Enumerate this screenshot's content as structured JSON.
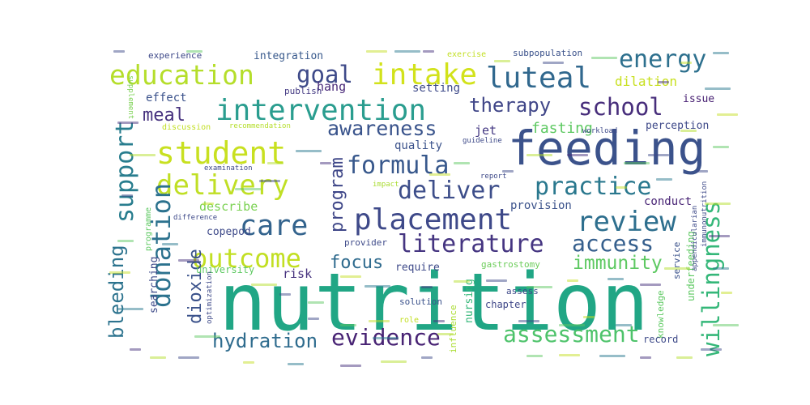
{
  "words": [
    {
      "text": "nutrition",
      "color": "#21a685"
    },
    {
      "text": "feeding",
      "color": "#3b528b"
    },
    {
      "text": "intervention",
      "color": "#2a9d8f"
    },
    {
      "text": "student",
      "color": "#c8e020"
    },
    {
      "text": "education",
      "color": "#b5de2b"
    },
    {
      "text": "intake",
      "color": "#d2e21b"
    },
    {
      "text": "luteal",
      "color": "#31688e"
    },
    {
      "text": "delivery",
      "color": "#c0df25"
    },
    {
      "text": "placement",
      "color": "#3e4989"
    },
    {
      "text": "donation",
      "color": "#2c728e"
    },
    {
      "text": "formula",
      "color": "#38588c"
    },
    {
      "text": "care",
      "color": "#33638d"
    },
    {
      "text": "review",
      "color": "#2e6f8e"
    },
    {
      "text": "school",
      "color": "#472d7b"
    },
    {
      "text": "energy",
      "color": "#2d708e"
    },
    {
      "text": "literature",
      "color": "#453581"
    },
    {
      "text": "outcome",
      "color": "#c2df23"
    },
    {
      "text": "support",
      "color": "#287d8e"
    },
    {
      "text": "practice",
      "color": "#2a788e"
    },
    {
      "text": "deliver",
      "color": "#3d4e8a"
    },
    {
      "text": "assessment",
      "color": "#4ec36b"
    },
    {
      "text": "willingness",
      "color": "#35b779"
    },
    {
      "text": "access",
      "color": "#355f8d"
    },
    {
      "text": "therapy",
      "color": "#404688"
    },
    {
      "text": "evidence",
      "color": "#482374"
    },
    {
      "text": "hydration",
      "color": "#2f6c8e"
    },
    {
      "text": "awareness",
      "color": "#3a548c"
    },
    {
      "text": "goal",
      "color": "#3e4a89"
    },
    {
      "text": "dioxide",
      "color": "#3b528b"
    },
    {
      "text": "bleeding",
      "color": "#2c738e"
    },
    {
      "text": "immunity",
      "color": "#5ec962"
    },
    {
      "text": "program",
      "color": "#3f4788"
    },
    {
      "text": "meal",
      "color": "#46317e"
    },
    {
      "text": "focus",
      "color": "#2f6b8e"
    },
    {
      "text": "fasting",
      "color": "#5ec962"
    },
    {
      "text": "dilation",
      "color": "#c8e020"
    },
    {
      "text": "effect",
      "color": "#3b528b"
    },
    {
      "text": "hang",
      "color": "#482878"
    },
    {
      "text": "jet",
      "color": "#443983"
    },
    {
      "text": "quality",
      "color": "#3b528b"
    },
    {
      "text": "setting",
      "color": "#3e4a89"
    },
    {
      "text": "describe",
      "color": "#7ad151"
    },
    {
      "text": "copepod",
      "color": "#3e4a89"
    },
    {
      "text": "risk",
      "color": "#46327e"
    },
    {
      "text": "require",
      "color": "#3e4a89"
    },
    {
      "text": "conduct",
      "color": "#482475"
    },
    {
      "text": "provision",
      "color": "#3b528b"
    },
    {
      "text": "perception",
      "color": "#3e4989"
    },
    {
      "text": "integration",
      "color": "#38598c"
    },
    {
      "text": "experience",
      "color": "#3e4989"
    },
    {
      "text": "subpopulation",
      "color": "#3b528b"
    },
    {
      "text": "exercise",
      "color": "#c2df23"
    },
    {
      "text": "issue",
      "color": "#482173"
    },
    {
      "text": "publish",
      "color": "#443a83"
    },
    {
      "text": "searching",
      "color": "#3e4a89"
    },
    {
      "text": "university",
      "color": "#5ec962"
    },
    {
      "text": "gastrostomy",
      "color": "#6ccd5a"
    },
    {
      "text": "nursing",
      "color": "#35b779"
    },
    {
      "text": "chapter",
      "color": "#3f4788"
    },
    {
      "text": "solution",
      "color": "#3b528b"
    },
    {
      "text": "assess",
      "color": "#3e4989"
    },
    {
      "text": "influence",
      "color": "#aadc32"
    },
    {
      "text": "provider",
      "color": "#3e4a89"
    },
    {
      "text": "underfeeding",
      "color": "#5ec962"
    },
    {
      "text": "knowledge",
      "color": "#5ec962"
    },
    {
      "text": "service",
      "color": "#3b528b"
    },
    {
      "text": "record",
      "color": "#3e4a89"
    },
    {
      "text": "examination",
      "color": "#3e4989"
    },
    {
      "text": "difference",
      "color": "#3e4989"
    },
    {
      "text": "programme",
      "color": "#5ec962"
    },
    {
      "text": "guideline",
      "color": "#3e4a89"
    },
    {
      "text": "impact",
      "color": "#aadc32"
    },
    {
      "text": "report",
      "color": "#3e4a89"
    },
    {
      "text": "optimization",
      "color": "#3e4a89"
    },
    {
      "text": "discussion",
      "color": "#c2df23"
    },
    {
      "text": "recommendation",
      "color": "#b5de2b"
    },
    {
      "text": "supplement",
      "color": "#7ad151"
    },
    {
      "text": "immunonutrition",
      "color": "#3e4a89"
    },
    {
      "text": "appendicularian",
      "color": "#3e4a89"
    },
    {
      "text": "workload",
      "color": "#3e4a89"
    },
    {
      "text": "role",
      "color": "#c2df23"
    }
  ]
}
